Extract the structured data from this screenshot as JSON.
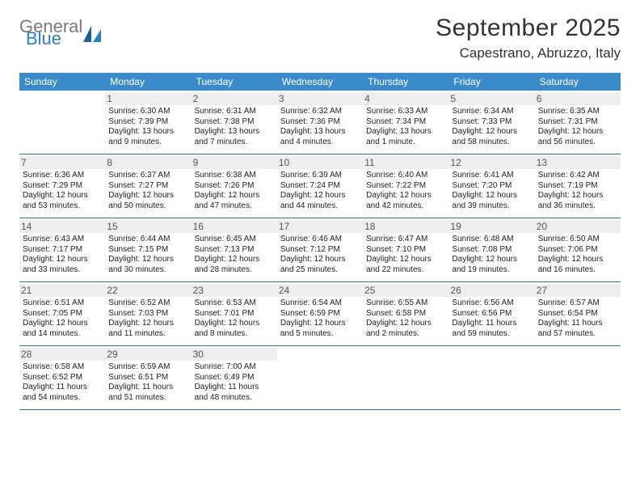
{
  "brand": {
    "general": "General",
    "blue": "Blue"
  },
  "title": "September 2025",
  "location": "Capestrano, Abruzzo, Italy",
  "colors": {
    "header_bg": "#3b8bc9",
    "header_text": "#ffffff",
    "week_border": "#3b6a94",
    "shaded_bg": "#f0f0f0",
    "logo_gray": "#7a7a7a",
    "logo_blue": "#2f7fc3"
  },
  "day_names": [
    "Sunday",
    "Monday",
    "Tuesday",
    "Wednesday",
    "Thursday",
    "Friday",
    "Saturday"
  ],
  "weeks": [
    [
      {
        "day": "",
        "sunrise": "",
        "sunset": "",
        "daylight": ""
      },
      {
        "day": "1",
        "sunrise": "Sunrise: 6:30 AM",
        "sunset": "Sunset: 7:39 PM",
        "daylight": "Daylight: 13 hours and 9 minutes."
      },
      {
        "day": "2",
        "sunrise": "Sunrise: 6:31 AM",
        "sunset": "Sunset: 7:38 PM",
        "daylight": "Daylight: 13 hours and 7 minutes."
      },
      {
        "day": "3",
        "sunrise": "Sunrise: 6:32 AM",
        "sunset": "Sunset: 7:36 PM",
        "daylight": "Daylight: 13 hours and 4 minutes."
      },
      {
        "day": "4",
        "sunrise": "Sunrise: 6:33 AM",
        "sunset": "Sunset: 7:34 PM",
        "daylight": "Daylight: 13 hours and 1 minute."
      },
      {
        "day": "5",
        "sunrise": "Sunrise: 6:34 AM",
        "sunset": "Sunset: 7:33 PM",
        "daylight": "Daylight: 12 hours and 58 minutes."
      },
      {
        "day": "6",
        "sunrise": "Sunrise: 6:35 AM",
        "sunset": "Sunset: 7:31 PM",
        "daylight": "Daylight: 12 hours and 56 minutes."
      }
    ],
    [
      {
        "day": "7",
        "sunrise": "Sunrise: 6:36 AM",
        "sunset": "Sunset: 7:29 PM",
        "daylight": "Daylight: 12 hours and 53 minutes."
      },
      {
        "day": "8",
        "sunrise": "Sunrise: 6:37 AM",
        "sunset": "Sunset: 7:27 PM",
        "daylight": "Daylight: 12 hours and 50 minutes."
      },
      {
        "day": "9",
        "sunrise": "Sunrise: 6:38 AM",
        "sunset": "Sunset: 7:26 PM",
        "daylight": "Daylight: 12 hours and 47 minutes."
      },
      {
        "day": "10",
        "sunrise": "Sunrise: 6:39 AM",
        "sunset": "Sunset: 7:24 PM",
        "daylight": "Daylight: 12 hours and 44 minutes."
      },
      {
        "day": "11",
        "sunrise": "Sunrise: 6:40 AM",
        "sunset": "Sunset: 7:22 PM",
        "daylight": "Daylight: 12 hours and 42 minutes."
      },
      {
        "day": "12",
        "sunrise": "Sunrise: 6:41 AM",
        "sunset": "Sunset: 7:20 PM",
        "daylight": "Daylight: 12 hours and 39 minutes."
      },
      {
        "day": "13",
        "sunrise": "Sunrise: 6:42 AM",
        "sunset": "Sunset: 7:19 PM",
        "daylight": "Daylight: 12 hours and 36 minutes."
      }
    ],
    [
      {
        "day": "14",
        "sunrise": "Sunrise: 6:43 AM",
        "sunset": "Sunset: 7:17 PM",
        "daylight": "Daylight: 12 hours and 33 minutes."
      },
      {
        "day": "15",
        "sunrise": "Sunrise: 6:44 AM",
        "sunset": "Sunset: 7:15 PM",
        "daylight": "Daylight: 12 hours and 30 minutes."
      },
      {
        "day": "16",
        "sunrise": "Sunrise: 6:45 AM",
        "sunset": "Sunset: 7:13 PM",
        "daylight": "Daylight: 12 hours and 28 minutes."
      },
      {
        "day": "17",
        "sunrise": "Sunrise: 6:46 AM",
        "sunset": "Sunset: 7:12 PM",
        "daylight": "Daylight: 12 hours and 25 minutes."
      },
      {
        "day": "18",
        "sunrise": "Sunrise: 6:47 AM",
        "sunset": "Sunset: 7:10 PM",
        "daylight": "Daylight: 12 hours and 22 minutes."
      },
      {
        "day": "19",
        "sunrise": "Sunrise: 6:48 AM",
        "sunset": "Sunset: 7:08 PM",
        "daylight": "Daylight: 12 hours and 19 minutes."
      },
      {
        "day": "20",
        "sunrise": "Sunrise: 6:50 AM",
        "sunset": "Sunset: 7:06 PM",
        "daylight": "Daylight: 12 hours and 16 minutes."
      }
    ],
    [
      {
        "day": "21",
        "sunrise": "Sunrise: 6:51 AM",
        "sunset": "Sunset: 7:05 PM",
        "daylight": "Daylight: 12 hours and 14 minutes."
      },
      {
        "day": "22",
        "sunrise": "Sunrise: 6:52 AM",
        "sunset": "Sunset: 7:03 PM",
        "daylight": "Daylight: 12 hours and 11 minutes."
      },
      {
        "day": "23",
        "sunrise": "Sunrise: 6:53 AM",
        "sunset": "Sunset: 7:01 PM",
        "daylight": "Daylight: 12 hours and 8 minutes."
      },
      {
        "day": "24",
        "sunrise": "Sunrise: 6:54 AM",
        "sunset": "Sunset: 6:59 PM",
        "daylight": "Daylight: 12 hours and 5 minutes."
      },
      {
        "day": "25",
        "sunrise": "Sunrise: 6:55 AM",
        "sunset": "Sunset: 6:58 PM",
        "daylight": "Daylight: 12 hours and 2 minutes."
      },
      {
        "day": "26",
        "sunrise": "Sunrise: 6:56 AM",
        "sunset": "Sunset: 6:56 PM",
        "daylight": "Daylight: 11 hours and 59 minutes."
      },
      {
        "day": "27",
        "sunrise": "Sunrise: 6:57 AM",
        "sunset": "Sunset: 6:54 PM",
        "daylight": "Daylight: 11 hours and 57 minutes."
      }
    ],
    [
      {
        "day": "28",
        "sunrise": "Sunrise: 6:58 AM",
        "sunset": "Sunset: 6:52 PM",
        "daylight": "Daylight: 11 hours and 54 minutes."
      },
      {
        "day": "29",
        "sunrise": "Sunrise: 6:59 AM",
        "sunset": "Sunset: 6:51 PM",
        "daylight": "Daylight: 11 hours and 51 minutes."
      },
      {
        "day": "30",
        "sunrise": "Sunrise: 7:00 AM",
        "sunset": "Sunset: 6:49 PM",
        "daylight": "Daylight: 11 hours and 48 minutes."
      },
      {
        "day": "",
        "sunrise": "",
        "sunset": "",
        "daylight": ""
      },
      {
        "day": "",
        "sunrise": "",
        "sunset": "",
        "daylight": ""
      },
      {
        "day": "",
        "sunrise": "",
        "sunset": "",
        "daylight": ""
      },
      {
        "day": "",
        "sunrise": "",
        "sunset": "",
        "daylight": ""
      }
    ]
  ]
}
